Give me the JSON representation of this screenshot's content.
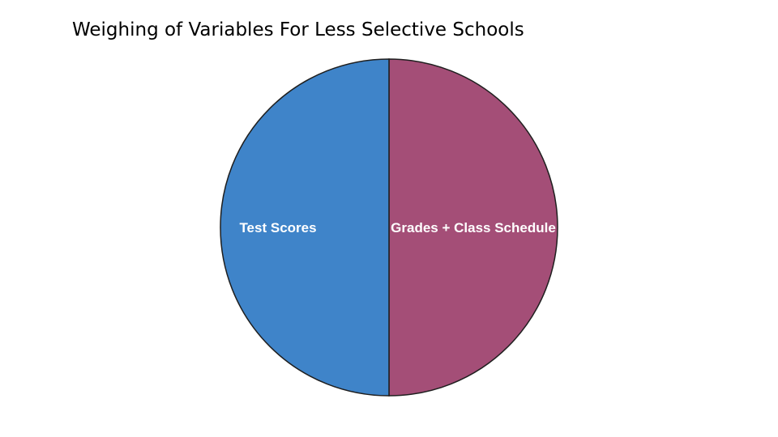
{
  "chart_data": {
    "type": "pie",
    "title": "Weighing of Variables For Less Selective Schools",
    "categories": [
      "Grades + Class Schedule",
      "Test Scores"
    ],
    "values": [
      50,
      50
    ],
    "colors": [
      "#a44e77",
      "#3f84c9"
    ],
    "outline_color": "#1f1f1f",
    "legend": "none"
  }
}
